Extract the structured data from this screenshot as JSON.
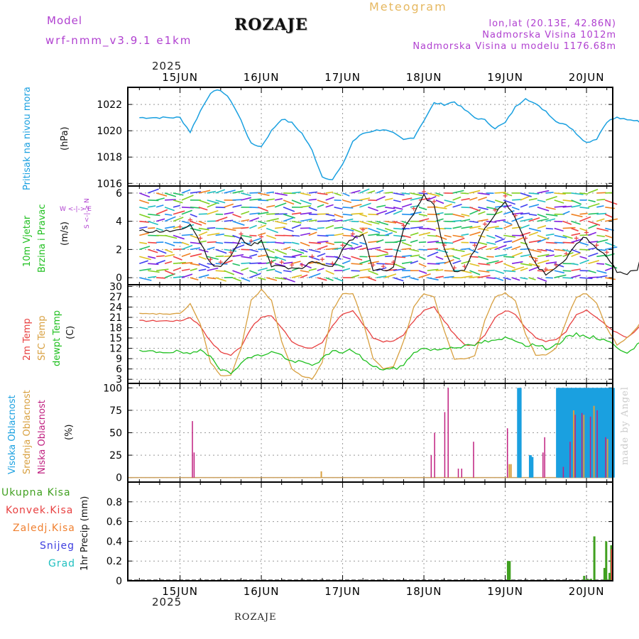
{
  "header": {
    "model_label": "Model",
    "model_name": "wrf-nmm_v3.9.1 e1km",
    "location": "ROZAJE",
    "chart_kind": "Meteogram",
    "coords": "lon,lat (20.13E, 42.86N)",
    "altitude": "Nadmorska Visina 1012m",
    "model_altitude": "Nadmorska Visina u modelu 1176.68m",
    "year_top": "2025",
    "year_bottom": "2025",
    "footer_location": "ROZAJE",
    "watermark": "made by Angel"
  },
  "days": [
    "15JUN",
    "16JUN",
    "17JUN",
    "18JUN",
    "19JUN",
    "20JUN"
  ],
  "panel_labels": {
    "pressure": {
      "name": "Pritisak na nivou mora",
      "unit": "(hPa)"
    },
    "wind": {
      "name1": "10m Vjetar",
      "name2": "Brzina i Pravac",
      "unit": "(m/s)",
      "compass": "W <-|-> E",
      "compass_v": "S <-|-> N"
    },
    "temp": {
      "t2m": "2m Temp",
      "sfc": "SFC Temp",
      "dew": "dewpt Temp",
      "unit": "(C)"
    },
    "cloud": {
      "high": "Visoka Oblacnost",
      "mid": "Srednja Oblacnost",
      "low": "Niska Oblacnost",
      "unit": "(%)"
    },
    "precip": {
      "total": "Ukupna Kisa",
      "conv": "Konvek.Kisa",
      "frozen": "Zaledj.Kisa",
      "snow": "Snijeg",
      "graupel": "Grad",
      "unit": "1hr Precip (mm)"
    }
  },
  "colors": {
    "pressure": "#1aa0e0",
    "t2m": "#e84040",
    "sfc": "#d8a040",
    "dew": "#20c020",
    "high": "#1aa0e0",
    "mid": "#d8a040",
    "low": "#c02080",
    "total": "#40a020",
    "conv": "#e84040",
    "frozen": "#f08030",
    "snow": "#4040e0",
    "graupel": "#20c0c0",
    "purple": "#b040d0"
  },
  "chart_data": [
    {
      "type": "line",
      "title": "Pritisak na nivou mora",
      "ylabel": "(hPa)",
      "ylim": [
        1015.8,
        1023.3
      ],
      "yticks": [
        "1016",
        "1018",
        "1020",
        "1022"
      ],
      "x_hours": [
        0,
        3,
        6,
        9,
        12,
        15,
        18,
        21,
        24,
        27,
        30,
        33,
        36,
        39,
        42,
        45,
        48,
        51,
        54,
        57,
        60,
        63,
        66,
        69,
        72,
        75,
        78,
        81,
        84,
        87,
        90,
        93,
        96,
        99,
        102,
        105,
        108,
        111,
        114,
        117,
        120,
        123,
        126,
        129,
        132,
        135,
        138,
        141,
        144
      ],
      "values": [
        1021,
        1019.9,
        1021.5,
        1022.9,
        1023.1,
        1022.3,
        1020.8,
        1019,
        1018.8,
        1020,
        1020.9,
        1020.6,
        1019.8,
        1018.5,
        1016.5,
        1016.3,
        1017.4,
        1019.2,
        1019.8,
        1020,
        1020.1,
        1019.8,
        1019.3,
        1019.5,
        1020.8,
        1022.1,
        1022,
        1022.2,
        1021.6,
        1021,
        1020.8,
        1020.2,
        1020.6,
        1021.8,
        1022.5,
        1022,
        1021.5,
        1020.7,
        1020.5,
        1019.8,
        1019.1,
        1019.4,
        1020.7,
        1021,
        1020.8,
        1020.8,
        1020.3,
        1019.8,
        1020
      ]
    },
    {
      "type": "line",
      "title": "10m Vjetar Brzina i Pravac",
      "ylabel": "(m/s)",
      "ylim": [
        -0.5,
        6.5
      ],
      "yticks": [
        "0",
        "2",
        "4",
        "6"
      ],
      "x_hours": [
        0,
        3,
        6,
        9,
        12,
        15,
        18,
        21,
        24,
        27,
        30,
        33,
        36,
        39,
        42,
        45,
        48,
        51,
        54,
        57,
        60,
        63,
        66,
        69,
        72,
        75,
        78,
        81,
        84,
        87,
        90,
        93,
        96,
        99,
        102,
        105,
        108,
        111,
        114,
        117,
        120,
        123,
        126,
        129,
        132,
        135,
        138,
        141,
        144
      ],
      "series": [
        {
          "values": [
            3.3,
            3.8,
            2.5,
            1.0,
            0.8,
            1.5,
            2.8,
            2.3,
            2.6,
            0.8,
            0.8,
            0.6,
            0.6,
            1.2,
            1.0,
            0.7,
            2.0,
            2.8,
            3.1,
            0.6,
            0.5,
            0.8,
            3.4,
            4.6,
            5.8,
            5.1,
            2.0,
            0.4,
            0.5,
            2.0,
            3.5,
            4.5,
            5.5,
            4.1,
            2.5,
            0.9,
            0.3,
            0.6,
            1.4,
            2.5,
            2.9,
            2.0,
            1.5,
            0.4,
            0.3,
            0.6,
            3.5,
            4.6,
            4.2
          ]
        }
      ]
    },
    {
      "type": "line",
      "title": "Temp",
      "ylabel": "(C)",
      "ylim": [
        1.8,
        30.5
      ],
      "yticks": [
        "3",
        "6",
        "9",
        "12",
        "15",
        "18",
        "21",
        "24",
        "27",
        "30"
      ],
      "x_hours": [
        0,
        3,
        6,
        9,
        12,
        15,
        18,
        21,
        24,
        27,
        30,
        33,
        36,
        39,
        42,
        45,
        48,
        51,
        54,
        57,
        60,
        63,
        66,
        69,
        72,
        75,
        78,
        81,
        84,
        87,
        90,
        93,
        96,
        99,
        102,
        105,
        108,
        111,
        114,
        117,
        120,
        123,
        126,
        129,
        132,
        135,
        138,
        141,
        144
      ],
      "series": [
        {
          "name": "2m Temp",
          "values": [
            20,
            21,
            18.5,
            14,
            11,
            10,
            12.5,
            18,
            21,
            21.5,
            18,
            14,
            12.5,
            12,
            13.5,
            18.5,
            22,
            23,
            19,
            15,
            14,
            14,
            16,
            20,
            23,
            24,
            20,
            16,
            13,
            13,
            16,
            21,
            23,
            22,
            18,
            15,
            14,
            14.5,
            17,
            22,
            23,
            21,
            18.5,
            16.5,
            15,
            17.5,
            21,
            23,
            22
          ]
        },
        {
          "name": "SFC Temp",
          "values": [
            22,
            25,
            19,
            8,
            4,
            4,
            12,
            26,
            29,
            26,
            14,
            6,
            4,
            3,
            8,
            23,
            28,
            28,
            20,
            9,
            6,
            6.5,
            14,
            24,
            28,
            27,
            17,
            9,
            9,
            10,
            20,
            27,
            28,
            26,
            16,
            10,
            10,
            12,
            20,
            27,
            28,
            25,
            18,
            13,
            15,
            18,
            23,
            27,
            25
          ]
        },
        {
          "name": "dewpt Temp",
          "values": [
            11,
            10,
            11.5,
            10,
            6,
            4.5,
            8,
            9.5,
            10,
            11,
            10,
            8,
            8,
            7,
            9,
            11,
            11,
            11.5,
            9,
            6.5,
            6,
            6,
            7,
            11,
            12,
            11.5,
            12,
            12.5,
            12.5,
            13,
            14,
            14,
            15,
            14.5,
            13,
            13,
            12,
            13,
            15,
            16,
            15.5,
            15,
            14.5,
            12,
            11,
            13,
            14,
            15,
            14.5
          ]
        }
      ]
    },
    {
      "type": "bar",
      "title": "Oblacnost",
      "ylabel": "(%)",
      "ylim": [
        -5,
        105
      ],
      "yticks": [
        "0",
        "25",
        "50",
        "75",
        "100"
      ],
      "series": [
        {
          "name": "Visoka Oblacnost",
          "bars": [
            [
              114.5,
              100
            ],
            [
              115,
              100
            ],
            [
              126,
              100
            ],
            [
              126.5,
              100
            ],
            [
              127,
              100
            ],
            [
              127.5,
              100
            ],
            [
              128,
              100
            ],
            [
              128.5,
              100
            ],
            [
              129,
              100
            ],
            [
              129.5,
              100
            ],
            [
              130,
              100
            ],
            [
              130.5,
              100
            ],
            [
              131,
              100
            ],
            [
              131.5,
              100
            ],
            [
              132,
              100
            ],
            [
              132.5,
              100
            ],
            [
              133,
              100
            ],
            [
              133.5,
              100
            ],
            [
              134,
              100
            ],
            [
              134.5,
              100
            ],
            [
              135,
              100
            ],
            [
              135.5,
              100
            ],
            [
              136,
              100
            ],
            [
              136.5,
              100
            ],
            [
              137,
              100
            ],
            [
              137.5,
              100
            ],
            [
              138,
              100
            ],
            [
              138.5,
              100
            ],
            [
              139,
              100
            ],
            [
              139.5,
              100
            ],
            [
              140,
              100
            ],
            [
              140.5,
              100
            ],
            [
              141,
              100
            ],
            [
              141.5,
              100
            ],
            [
              142,
              100
            ],
            [
              142.5,
              100
            ],
            [
              143,
              100
            ],
            [
              143.5,
              100
            ],
            [
              144,
              100
            ],
            [
              144.5,
              100
            ],
            [
              145,
              100
            ],
            [
              145.5,
              100
            ],
            [
              146,
              100
            ],
            [
              147.5,
              100
            ],
            [
              148,
              100
            ],
            [
              118,
              25
            ],
            [
              118.5,
              23
            ],
            [
              151,
              37
            ]
          ]
        },
        {
          "name": "Srednja Oblacnost",
          "bars": [
            [
              56.5,
              7
            ],
            [
              112,
              15
            ],
            [
              112.5,
              15
            ],
            [
              131,
              75
            ],
            [
              134,
              70
            ],
            [
              137,
              80
            ],
            [
              141,
              43
            ],
            [
              144,
              80
            ],
            [
              146,
              44
            ]
          ]
        },
        {
          "name": "Niska Oblacnost",
          "bars": [
            [
              18.5,
              63
            ],
            [
              19,
              28
            ],
            [
              89,
              25
            ],
            [
              90,
              50
            ],
            [
              93,
              73
            ],
            [
              94,
              100
            ],
            [
              97,
              10
            ],
            [
              98,
              10
            ],
            [
              101.5,
              40
            ],
            [
              111.5,
              55
            ],
            [
              122,
              28
            ],
            [
              122.5,
              45
            ],
            [
              128,
              12
            ],
            [
              130,
              40
            ],
            [
              131.5,
              70
            ],
            [
              133.5,
              72
            ],
            [
              136,
              68
            ],
            [
              138,
              75
            ],
            [
              140.5,
              45
            ],
            [
              143,
              67
            ],
            [
              145,
              75
            ],
            [
              149,
              55
            ],
            [
              150.5,
              13
            ],
            [
              151.5,
              45
            ]
          ]
        }
      ]
    },
    {
      "type": "bar",
      "title": "1hr Precip",
      "ylabel": "1hr Precip (mm)",
      "ylim": [
        0,
        1
      ],
      "yticks": [
        "0",
        "0.2",
        "0.4",
        "0.6",
        "0.8"
      ],
      "series": [
        {
          "name": "Ukupna Kisa",
          "bars": [
            [
              111.5,
              0.2
            ],
            [
              112,
              0.2
            ],
            [
              134,
              0.05
            ],
            [
              135,
              0.02
            ],
            [
              136,
              0.02
            ],
            [
              137,
              0.45
            ],
            [
              140,
              0.13
            ],
            [
              140.5,
              0.4
            ],
            [
              141.5,
              0.08
            ],
            [
              142,
              0.36
            ],
            [
              143,
              0.38
            ],
            [
              143.5,
              0.22
            ],
            [
              146,
              0.11
            ],
            [
              146.5,
              0.1
            ],
            [
              150.5,
              0.12
            ]
          ]
        },
        {
          "name": "Konvek.Kisa",
          "bars": [
            [
              142,
              0.32
            ],
            [
              143,
              0.36
            ]
          ]
        }
      ]
    }
  ]
}
